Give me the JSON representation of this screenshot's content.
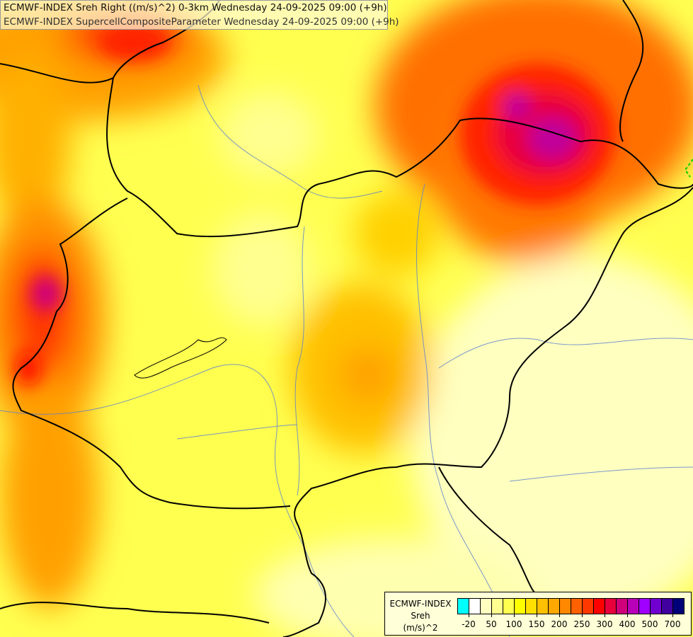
{
  "header": {
    "line1": "ECMWF-INDEX Sreh Right ((m/s)^2) 0-3km Wednesday 24-09-2025 09:00 (+9h)",
    "line2": "ECMWF-INDEX SupercellCompositeParameter Wednesday 24-09-2025 09:00 (+9h)"
  },
  "legend": {
    "title": "ECMWF-INDEX",
    "variable": "Sreh",
    "unit": "(m/s)^2",
    "colors": [
      "#00ffff",
      "#ffffff",
      "#ffffc0",
      "#ffff90",
      "#ffff50",
      "#ffff00",
      "#ffe000",
      "#ffc000",
      "#ffa800",
      "#ff8800",
      "#ff6000",
      "#ff3800",
      "#ff0000",
      "#e8003c",
      "#d0007a",
      "#b800b8",
      "#a000ff",
      "#7000d0",
      "#4000a0",
      "#000078"
    ],
    "labels": [
      "-20",
      "50",
      "100",
      "150",
      "200",
      "250",
      "300",
      "400",
      "500",
      "700"
    ]
  }
}
